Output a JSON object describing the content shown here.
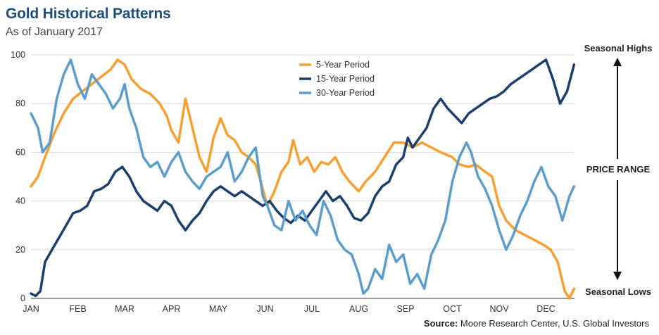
{
  "header": {
    "title": "Gold Historical Patterns",
    "subtitle": "As of January 2017"
  },
  "side": {
    "high_label": "Seasonal Highs",
    "range_label": "PRICE RANGE",
    "low_label": "Seasonal Lows"
  },
  "footer": {
    "source_prefix": "Source:",
    "source_text": " Moore Research Center, U.S. Global Investors"
  },
  "chart_data": {
    "type": "line",
    "title": "Gold Historical Patterns",
    "xlabel": "",
    "ylabel": "",
    "ylim": [
      0,
      100
    ],
    "yticks": [
      0,
      20,
      40,
      60,
      80,
      100
    ],
    "months": [
      "JAN",
      "FEB",
      "MAR",
      "APR",
      "MAY",
      "JUN",
      "JUL",
      "AUG",
      "SEP",
      "OCT",
      "NOV",
      "DEC"
    ],
    "x_range": [
      0,
      11.6
    ],
    "grid": true,
    "legend_position": "top-center",
    "series": [
      {
        "name": "5-Year Period",
        "color": "#f7a030",
        "points": [
          [
            0,
            46
          ],
          [
            0.15,
            50
          ],
          [
            0.3,
            58
          ],
          [
            0.5,
            68
          ],
          [
            0.7,
            76
          ],
          [
            0.9,
            82
          ],
          [
            1.1,
            85
          ],
          [
            1.3,
            88
          ],
          [
            1.5,
            91
          ],
          [
            1.7,
            94
          ],
          [
            1.85,
            98
          ],
          [
            2.0,
            96
          ],
          [
            2.15,
            90
          ],
          [
            2.35,
            86
          ],
          [
            2.55,
            84
          ],
          [
            2.75,
            80
          ],
          [
            2.9,
            75
          ],
          [
            3.0,
            69
          ],
          [
            3.15,
            64
          ],
          [
            3.3,
            82
          ],
          [
            3.45,
            70
          ],
          [
            3.6,
            58
          ],
          [
            3.75,
            52
          ],
          [
            3.9,
            66
          ],
          [
            4.05,
            74
          ],
          [
            4.2,
            67
          ],
          [
            4.35,
            65
          ],
          [
            4.5,
            60
          ],
          [
            4.65,
            58
          ],
          [
            4.8,
            55
          ],
          [
            4.95,
            45
          ],
          [
            5.05,
            38
          ],
          [
            5.2,
            44
          ],
          [
            5.35,
            52
          ],
          [
            5.5,
            56
          ],
          [
            5.6,
            65
          ],
          [
            5.75,
            55
          ],
          [
            5.9,
            58
          ],
          [
            6.05,
            52
          ],
          [
            6.2,
            56
          ],
          [
            6.35,
            55
          ],
          [
            6.5,
            58
          ],
          [
            6.65,
            52
          ],
          [
            6.8,
            48
          ],
          [
            7.0,
            44
          ],
          [
            7.15,
            48
          ],
          [
            7.35,
            52
          ],
          [
            7.55,
            58
          ],
          [
            7.75,
            64
          ],
          [
            7.95,
            64
          ],
          [
            8.15,
            62
          ],
          [
            8.35,
            64
          ],
          [
            8.55,
            62
          ],
          [
            8.75,
            60
          ],
          [
            9.0,
            58
          ],
          [
            9.15,
            55
          ],
          [
            9.35,
            54
          ],
          [
            9.5,
            55
          ],
          [
            9.7,
            52
          ],
          [
            9.85,
            50
          ],
          [
            10.0,
            38
          ],
          [
            10.15,
            32
          ],
          [
            10.35,
            28
          ],
          [
            10.55,
            26
          ],
          [
            10.75,
            24
          ],
          [
            10.95,
            22
          ],
          [
            11.1,
            20
          ],
          [
            11.25,
            15
          ],
          [
            11.4,
            3
          ],
          [
            11.5,
            0
          ],
          [
            11.6,
            4
          ]
        ]
      },
      {
        "name": "15-Year Period",
        "color": "#1b3f6e",
        "points": [
          [
            0,
            2
          ],
          [
            0.1,
            1
          ],
          [
            0.2,
            3
          ],
          [
            0.3,
            15
          ],
          [
            0.45,
            20
          ],
          [
            0.6,
            25
          ],
          [
            0.75,
            30
          ],
          [
            0.9,
            35
          ],
          [
            1.05,
            36
          ],
          [
            1.2,
            38
          ],
          [
            1.35,
            44
          ],
          [
            1.5,
            45
          ],
          [
            1.65,
            47
          ],
          [
            1.8,
            52
          ],
          [
            1.95,
            54
          ],
          [
            2.1,
            50
          ],
          [
            2.25,
            44
          ],
          [
            2.4,
            40
          ],
          [
            2.55,
            38
          ],
          [
            2.7,
            36
          ],
          [
            2.85,
            40
          ],
          [
            3.0,
            38
          ],
          [
            3.15,
            32
          ],
          [
            3.3,
            28
          ],
          [
            3.45,
            32
          ],
          [
            3.6,
            35
          ],
          [
            3.75,
            40
          ],
          [
            3.9,
            44
          ],
          [
            4.05,
            46
          ],
          [
            4.2,
            44
          ],
          [
            4.35,
            42
          ],
          [
            4.5,
            44
          ],
          [
            4.65,
            42
          ],
          [
            4.8,
            40
          ],
          [
            4.95,
            38
          ],
          [
            5.1,
            40
          ],
          [
            5.25,
            36
          ],
          [
            5.4,
            33
          ],
          [
            5.55,
            31
          ],
          [
            5.7,
            34
          ],
          [
            5.85,
            32
          ],
          [
            6.0,
            36
          ],
          [
            6.15,
            40
          ],
          [
            6.3,
            44
          ],
          [
            6.45,
            40
          ],
          [
            6.6,
            42
          ],
          [
            6.75,
            38
          ],
          [
            6.9,
            33
          ],
          [
            7.05,
            32
          ],
          [
            7.2,
            35
          ],
          [
            7.35,
            42
          ],
          [
            7.5,
            46
          ],
          [
            7.65,
            48
          ],
          [
            7.8,
            55
          ],
          [
            7.95,
            58
          ],
          [
            8.05,
            66
          ],
          [
            8.15,
            62
          ],
          [
            8.3,
            66
          ],
          [
            8.45,
            70
          ],
          [
            8.6,
            78
          ],
          [
            8.75,
            82
          ],
          [
            8.9,
            78
          ],
          [
            9.05,
            75
          ],
          [
            9.2,
            72
          ],
          [
            9.35,
            76
          ],
          [
            9.5,
            78
          ],
          [
            9.65,
            80
          ],
          [
            9.8,
            82
          ],
          [
            9.95,
            83
          ],
          [
            10.1,
            85
          ],
          [
            10.25,
            88
          ],
          [
            10.4,
            90
          ],
          [
            10.55,
            92
          ],
          [
            10.7,
            94
          ],
          [
            10.85,
            96
          ],
          [
            11.0,
            98
          ],
          [
            11.15,
            90
          ],
          [
            11.3,
            80
          ],
          [
            11.45,
            85
          ],
          [
            11.6,
            96
          ]
        ]
      },
      {
        "name": "30-Year Period",
        "color": "#5b9ecb",
        "points": [
          [
            0,
            76
          ],
          [
            0.15,
            70
          ],
          [
            0.25,
            60
          ],
          [
            0.4,
            64
          ],
          [
            0.55,
            82
          ],
          [
            0.7,
            92
          ],
          [
            0.85,
            98
          ],
          [
            1.0,
            88
          ],
          [
            1.15,
            82
          ],
          [
            1.3,
            92
          ],
          [
            1.45,
            88
          ],
          [
            1.6,
            84
          ],
          [
            1.75,
            78
          ],
          [
            1.9,
            82
          ],
          [
            2.0,
            88
          ],
          [
            2.1,
            78
          ],
          [
            2.25,
            70
          ],
          [
            2.4,
            58
          ],
          [
            2.55,
            54
          ],
          [
            2.7,
            56
          ],
          [
            2.85,
            50
          ],
          [
            3.0,
            56
          ],
          [
            3.15,
            60
          ],
          [
            3.3,
            52
          ],
          [
            3.45,
            48
          ],
          [
            3.6,
            45
          ],
          [
            3.75,
            50
          ],
          [
            3.9,
            52
          ],
          [
            4.05,
            54
          ],
          [
            4.2,
            60
          ],
          [
            4.35,
            48
          ],
          [
            4.5,
            52
          ],
          [
            4.65,
            58
          ],
          [
            4.8,
            62
          ],
          [
            4.95,
            42
          ],
          [
            5.05,
            38
          ],
          [
            5.2,
            30
          ],
          [
            5.35,
            28
          ],
          [
            5.5,
            40
          ],
          [
            5.65,
            32
          ],
          [
            5.8,
            36
          ],
          [
            5.95,
            30
          ],
          [
            6.1,
            26
          ],
          [
            6.25,
            40
          ],
          [
            6.4,
            34
          ],
          [
            6.55,
            24
          ],
          [
            6.7,
            20
          ],
          [
            6.85,
            18
          ],
          [
            7.0,
            10
          ],
          [
            7.1,
            2
          ],
          [
            7.2,
            4
          ],
          [
            7.35,
            12
          ],
          [
            7.5,
            8
          ],
          [
            7.65,
            22
          ],
          [
            7.8,
            15
          ],
          [
            7.95,
            18
          ],
          [
            8.1,
            6
          ],
          [
            8.25,
            10
          ],
          [
            8.4,
            4
          ],
          [
            8.55,
            18
          ],
          [
            8.7,
            24
          ],
          [
            8.85,
            32
          ],
          [
            9.0,
            48
          ],
          [
            9.15,
            58
          ],
          [
            9.3,
            64
          ],
          [
            9.4,
            60
          ],
          [
            9.55,
            50
          ],
          [
            9.7,
            45
          ],
          [
            9.85,
            38
          ],
          [
            10.0,
            28
          ],
          [
            10.15,
            20
          ],
          [
            10.3,
            26
          ],
          [
            10.45,
            34
          ],
          [
            10.6,
            40
          ],
          [
            10.75,
            48
          ],
          [
            10.9,
            54
          ],
          [
            11.05,
            46
          ],
          [
            11.2,
            42
          ],
          [
            11.35,
            32
          ],
          [
            11.5,
            42
          ],
          [
            11.6,
            46
          ]
        ]
      }
    ]
  }
}
